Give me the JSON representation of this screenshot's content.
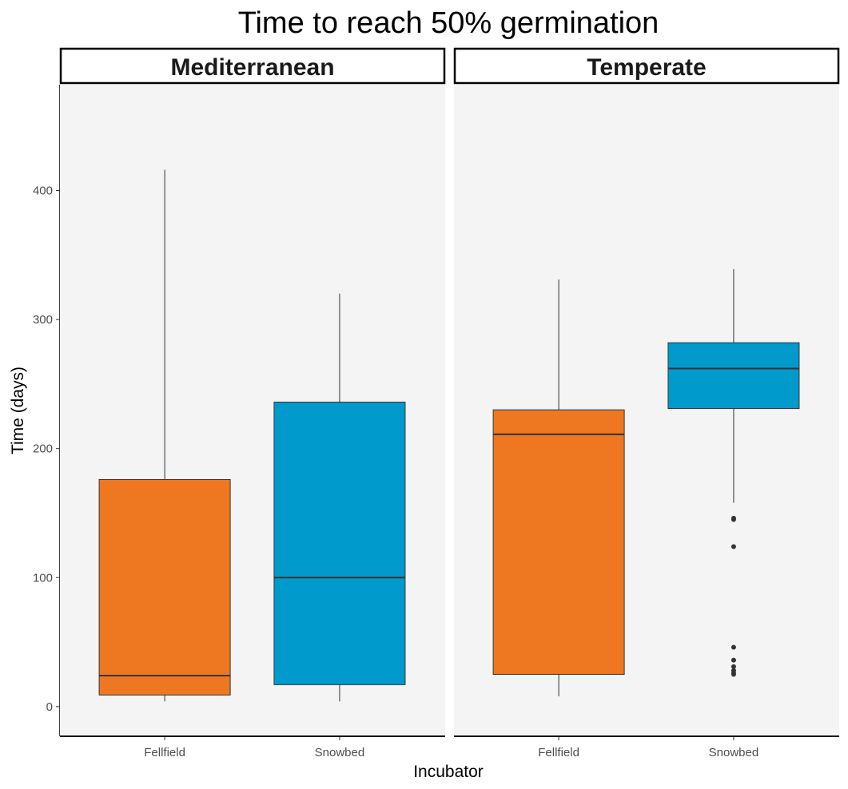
{
  "chart_data": {
    "type": "box",
    "title": "Time to reach 50% germination",
    "xlabel": "Incubator",
    "ylabel": "Time (days)",
    "ylim": [
      -23,
      482
    ],
    "yticks": [
      0,
      100,
      200,
      300,
      400
    ],
    "ytick_labels": [
      "0",
      "100",
      "200",
      "300",
      "400"
    ],
    "categories": [
      "Fellfield",
      "Snowbed"
    ],
    "colors": {
      "Fellfield": "#EE7722",
      "Snowbed": "#009ACD"
    },
    "panel_background": "#F4F4F4",
    "grid": false,
    "legend": "none",
    "panels": [
      {
        "label": "Mediterranean",
        "boxes": [
          {
            "category": "Fellfield",
            "whisker_low": 4,
            "q1": 9,
            "median": 24,
            "q3": 176,
            "whisker_high": 416,
            "outliers": []
          },
          {
            "category": "Snowbed",
            "whisker_low": 4,
            "q1": 17,
            "median": 100,
            "q3": 236,
            "whisker_high": 320,
            "outliers": []
          }
        ]
      },
      {
        "label": "Temperate",
        "boxes": [
          {
            "category": "Fellfield",
            "whisker_low": 8,
            "q1": 25,
            "median": 211,
            "q3": 230,
            "whisker_high": 331,
            "outliers": []
          },
          {
            "category": "Snowbed",
            "whisker_low": 158,
            "q1": 231,
            "median": 262,
            "q3": 282,
            "whisker_high": 339,
            "outliers": [
              146,
              145,
              124,
              46,
              36,
              31,
              28,
              26,
              25
            ]
          }
        ]
      }
    ]
  }
}
